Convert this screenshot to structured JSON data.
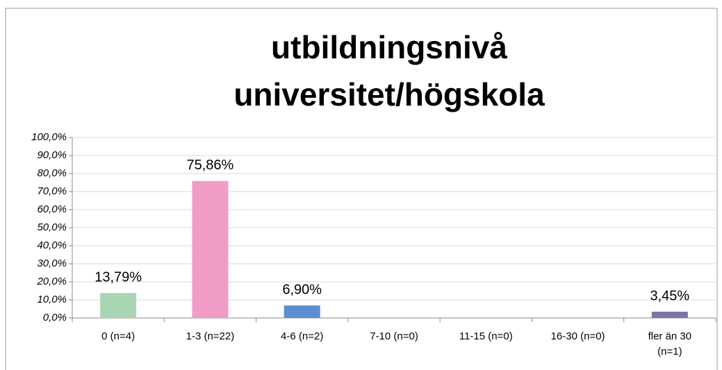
{
  "chart_data": {
    "type": "bar",
    "title": [
      "utbildningsnivå",
      "universitet/högskola"
    ],
    "categories": [
      "0 (n=4)",
      "1-3 (n=22)",
      "4-6 (n=2)",
      "7-10 (n=0)",
      "11-15 (n=0)",
      "16-30 (n=0)",
      "fler än 30 (n=1)"
    ],
    "values": [
      13.79,
      75.86,
      6.9,
      0,
      0,
      0,
      3.45
    ],
    "value_labels": [
      "13,79%",
      "75,86%",
      "6,90%",
      null,
      null,
      null,
      "3,45%"
    ],
    "colors": [
      "#a8d5b4",
      "#f09cc6",
      "#5a8fd2",
      "#a8a8a8",
      "#a8a8a8",
      "#a8a8a8",
      "#7d72a8"
    ],
    "ylim": [
      0,
      100
    ],
    "yticks": [
      {
        "value": 0,
        "label": "0,0%"
      },
      {
        "value": 10,
        "label": "10,0%"
      },
      {
        "value": 20,
        "label": "20,0%"
      },
      {
        "value": 30,
        "label": "30,0%"
      },
      {
        "value": 40,
        "label": "40,0%"
      },
      {
        "value": 50,
        "label": "50,0%"
      },
      {
        "value": 60,
        "label": "60,0%"
      },
      {
        "value": 70,
        "label": "70,0%"
      },
      {
        "value": 80,
        "label": "80,0%"
      },
      {
        "value": 90,
        "label": "90,0%"
      },
      {
        "value": 100,
        "label": "100,0%"
      }
    ],
    "grid": true
  }
}
